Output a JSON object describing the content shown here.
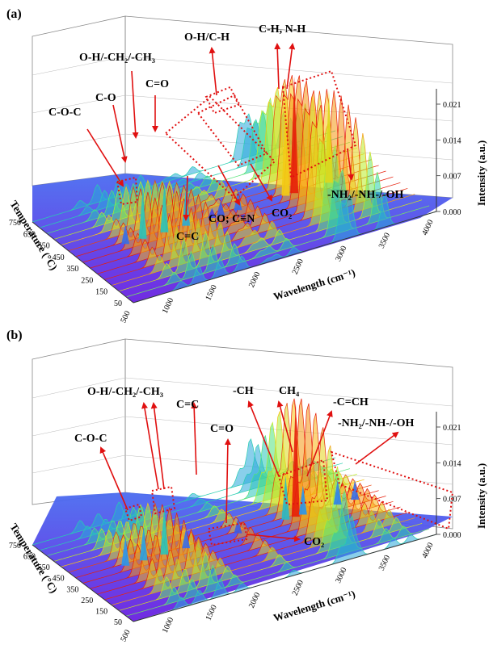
{
  "colors": {
    "arrow": "#e01010",
    "box": "#e01010",
    "axis": "#333333",
    "grid": "#888888"
  },
  "chart_data": [
    {
      "type": "surface3d",
      "panel_label": "(a)",
      "zlabel": "Intensity (a.u.)",
      "xlabel": "Wavelength (cm⁻¹)",
      "ylabel": "Temperature (°C)",
      "xlim": [
        500,
        4000
      ],
      "ylim": [
        50,
        750
      ],
      "zlim": [
        0.0,
        0.024
      ],
      "x_ticks": [
        "500",
        "1000",
        "1500",
        "2000",
        "2500",
        "3000",
        "3500",
        "4000"
      ],
      "y_ticks": [
        "50",
        "150",
        "250",
        "350",
        "450",
        "550",
        "650",
        "750"
      ],
      "z_ticks": [
        "0.000",
        "0.007",
        "0.014",
        "0.021"
      ],
      "peaks": [
        {
          "wn": 1050,
          "z": 0.004
        },
        {
          "wn": 1250,
          "z": 0.01
        },
        {
          "wn": 1500,
          "z": 0.01
        },
        {
          "wn": 1750,
          "z": 0.008
        },
        {
          "wn": 2050,
          "z": 0.002
        },
        {
          "wn": 2150,
          "z": 0.003
        },
        {
          "wn": 2350,
          "z": 0.004
        },
        {
          "wn": 2900,
          "z": 0.02
        },
        {
          "wn": 3000,
          "z": 0.024
        },
        {
          "wn": 3400,
          "z": 0.019
        }
      ],
      "annotations": [
        {
          "text": "C-O-C"
        },
        {
          "text": "C-O"
        },
        {
          "text": "O-H/-CH₂/-CH₃"
        },
        {
          "text": "C=O"
        },
        {
          "text": "O-H/C-H"
        },
        {
          "text": "C-H, N-H"
        },
        {
          "text": "C=C"
        },
        {
          "text": "CO; C≡N"
        },
        {
          "text": "CO₂"
        },
        {
          "text": "-NH₂/-NH-/-OH"
        }
      ]
    },
    {
      "type": "surface3d",
      "panel_label": "(b)",
      "zlabel": "Intensity (a.u.)",
      "xlabel": "Wavelength (cm⁻¹)",
      "ylabel": "Temperature (°C)",
      "xlim": [
        500,
        4000
      ],
      "ylim": [
        50,
        750
      ],
      "zlim": [
        0.0,
        0.024
      ],
      "x_ticks": [
        "500",
        "1000",
        "1500",
        "2000",
        "2500",
        "3000",
        "3500",
        "4000"
      ],
      "y_ticks": [
        "50",
        "150",
        "250",
        "350",
        "450",
        "550",
        "650",
        "750"
      ],
      "z_ticks": [
        "0.000",
        "0.007",
        "0.014",
        "0.021"
      ],
      "peaks": [
        {
          "wn": 1050,
          "z": 0.006
        },
        {
          "wn": 1260,
          "z": 0.007
        },
        {
          "wn": 1500,
          "z": 0.01
        },
        {
          "wn": 1750,
          "z": 0.004
        },
        {
          "wn": 2350,
          "z": 0.003
        },
        {
          "wn": 2900,
          "z": 0.009
        },
        {
          "wn": 3016,
          "z": 0.024
        },
        {
          "wn": 3100,
          "z": 0.006
        },
        {
          "wn": 3500,
          "z": 0.005
        },
        {
          "wn": 3700,
          "z": 0.004
        }
      ],
      "annotations": [
        {
          "text": "C-O-C"
        },
        {
          "text": "O-H/-CH₂/-CH₃"
        },
        {
          "text": "C=C"
        },
        {
          "text": "C=O"
        },
        {
          "text": "-CH"
        },
        {
          "text": "CH₄"
        },
        {
          "text": "-C=CH"
        },
        {
          "text": "-NH₂/-NH-/-OH"
        },
        {
          "text": "CO₂"
        }
      ]
    }
  ]
}
